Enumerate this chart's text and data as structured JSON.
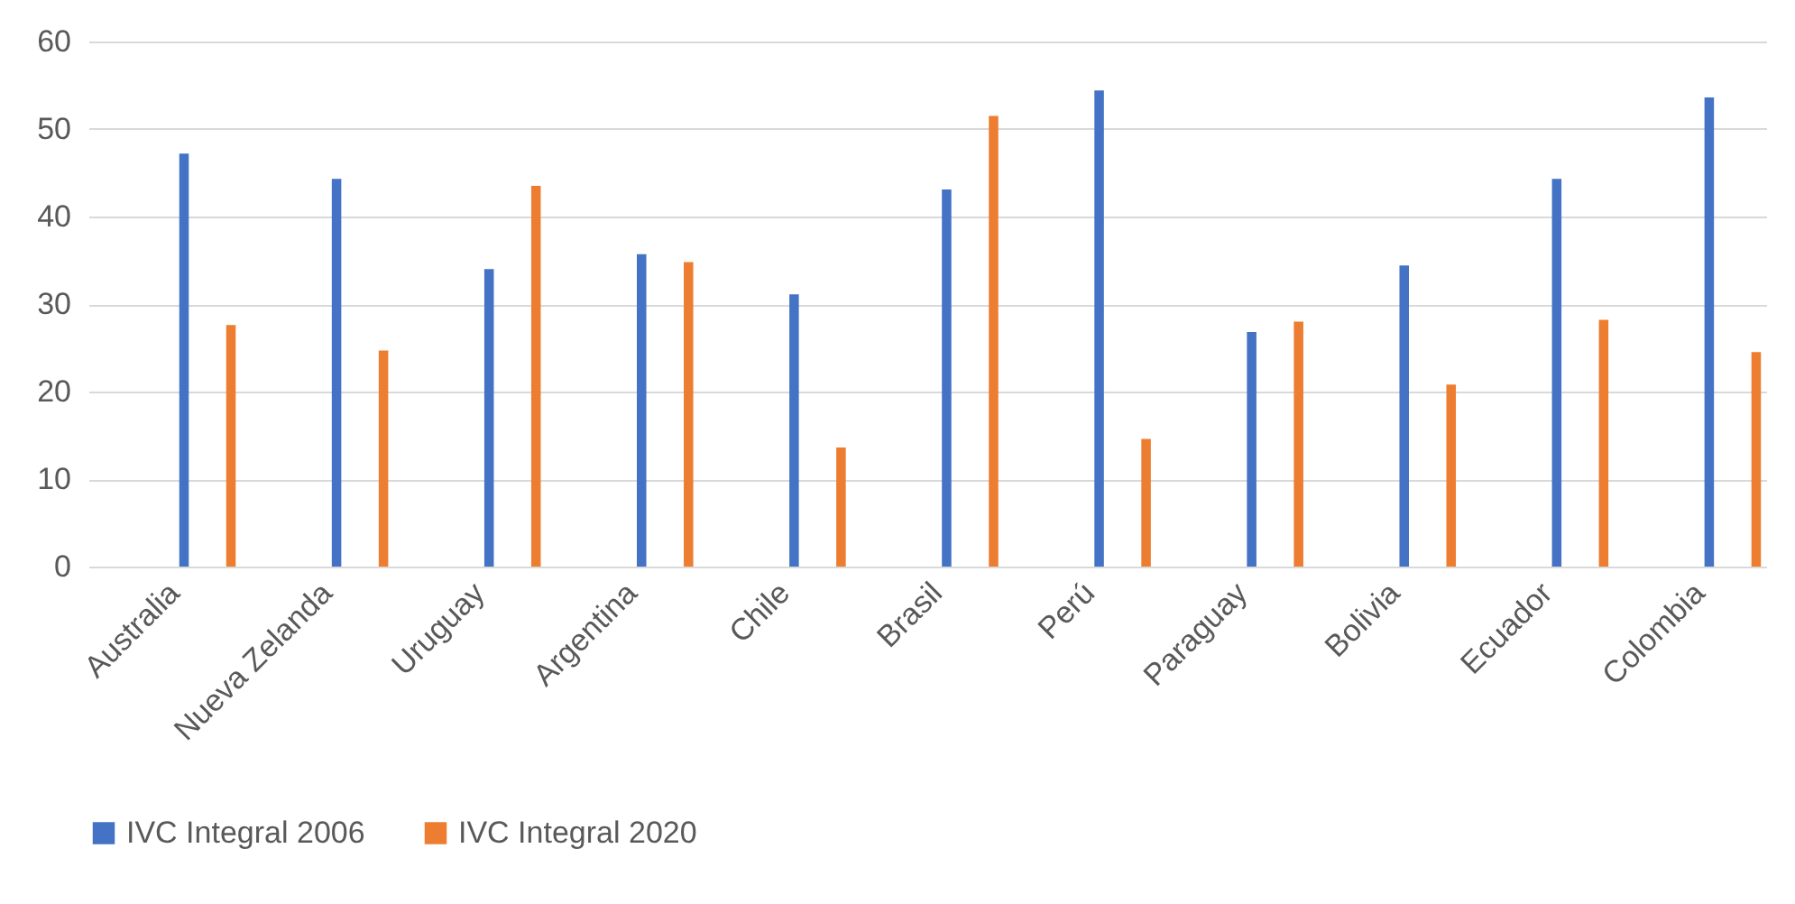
{
  "chart_data": {
    "type": "bar",
    "categories": [
      "Australia",
      "Nueva Zelanda",
      "Uruguay",
      "Argentina",
      "Chile",
      "Brasil",
      "Perú",
      "Paraguay",
      "Bolivia",
      "Ecuador",
      "Colombia"
    ],
    "series": [
      {
        "name": "IVC Integral 2006",
        "color": "#4472c4",
        "values": [
          47.2,
          44.3,
          34.0,
          35.7,
          31.1,
          43.1,
          54.4,
          26.8,
          34.4,
          44.3,
          53.6
        ]
      },
      {
        "name": "IVC Integral 2020",
        "color": "#ed7d31",
        "values": [
          27.6,
          24.7,
          43.5,
          34.8,
          13.6,
          51.5,
          14.6,
          28.0,
          20.8,
          28.2,
          24.5
        ]
      }
    ],
    "ylim": [
      0,
      60
    ],
    "yticks": [
      0,
      10,
      20,
      30,
      40,
      50,
      60
    ],
    "grid": "y",
    "legend": "bottom"
  }
}
